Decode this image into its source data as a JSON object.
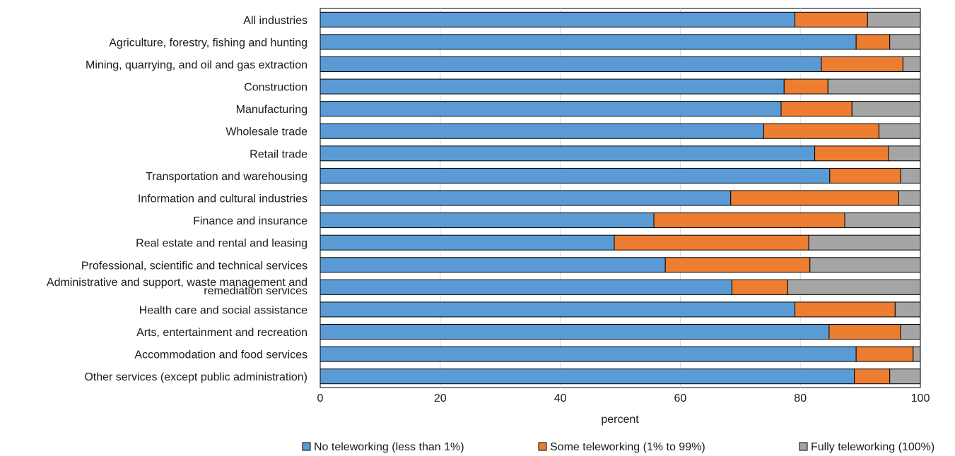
{
  "chart_data": {
    "type": "bar",
    "orientation": "horizontal",
    "stacked": true,
    "title": "",
    "xlabel": "percent",
    "ylabel": "",
    "xlim": [
      0,
      100
    ],
    "x_ticks": [
      "0",
      "20",
      "40",
      "60",
      "80",
      "100"
    ],
    "grid": true,
    "legend_position": "bottom",
    "categories": [
      "All industries",
      "Agriculture, forestry, fishing and hunting",
      "Mining, quarrying, and oil and gas extraction",
      "Construction",
      "Manufacturing",
      "Wholesale trade",
      "Retail trade",
      "Transportation and warehousing",
      "Information and cultural industries",
      "Finance and insurance",
      "Real estate and rental and leasing",
      "Professional, scientific and technical services",
      "Administrative and support, waste management and remediation services",
      "Health care and social assistance",
      "Arts, entertainment and recreation",
      "Accommodation and food services",
      "Other services (except public administration)"
    ],
    "category_label_lines": [
      [
        "All industries"
      ],
      [
        "Agriculture, forestry, fishing and hunting"
      ],
      [
        "Mining, quarrying, and oil and gas extraction"
      ],
      [
        "Construction"
      ],
      [
        "Manufacturing"
      ],
      [
        "Wholesale trade"
      ],
      [
        "Retail trade"
      ],
      [
        "Transportation and warehousing"
      ],
      [
        "Information and cultural industries"
      ],
      [
        "Finance and insurance"
      ],
      [
        "Real estate and rental and leasing"
      ],
      [
        "Professional, scientific and technical services"
      ],
      [
        "Administrative and support, waste management and",
        "remediation services"
      ],
      [
        "Health care and social assistance"
      ],
      [
        "Arts, entertainment and recreation"
      ],
      [
        "Accommodation and food services"
      ],
      [
        "Other services (except public administration)"
      ]
    ],
    "series": [
      {
        "name": "No teleworking (less than 1%)",
        "color": "#5b9bd5",
        "values": [
          79.1,
          89.3,
          83.5,
          77.3,
          76.8,
          73.9,
          82.4,
          84.9,
          68.4,
          55.6,
          49.0,
          57.5,
          68.6,
          79.1,
          84.8,
          89.3,
          89.0
        ]
      },
      {
        "name": "Some teleworking (1% to 99%)",
        "color": "#ed7d31",
        "values": [
          12.1,
          5.6,
          13.6,
          7.3,
          11.8,
          19.2,
          12.3,
          11.8,
          28.0,
          31.8,
          32.4,
          24.1,
          9.3,
          16.7,
          11.9,
          9.5,
          5.9
        ]
      },
      {
        "name": "Fully teleworking (100%)",
        "color": "#a5a5a5",
        "values": [
          8.8,
          5.1,
          2.9,
          15.4,
          11.4,
          6.9,
          5.3,
          3.3,
          3.6,
          12.6,
          18.6,
          18.4,
          22.1,
          4.2,
          3.3,
          1.2,
          5.1
        ]
      }
    ]
  }
}
